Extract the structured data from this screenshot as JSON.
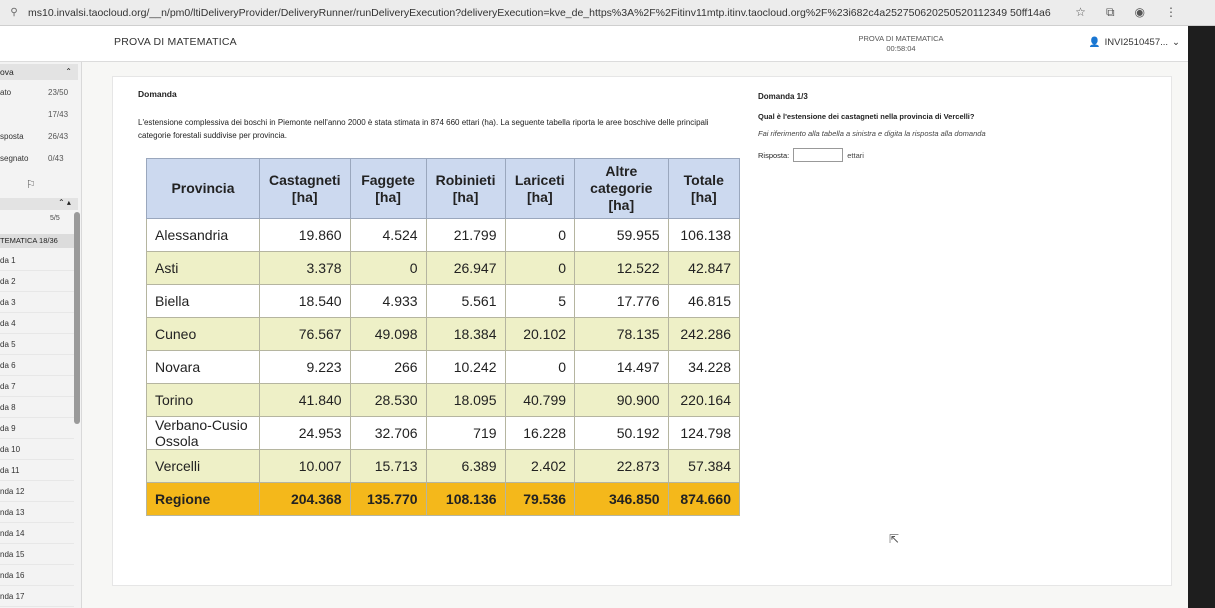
{
  "browser": {
    "url": "ms10.invalsi.taocloud.org/__n/pm0/ltiDeliveryProvider/DeliveryRunner/runDeliveryExecution?deliveryExecution=kve_de_https%3A%2F%2Fitinv11mtp.itinv.taocloud.org%2F%23i682c4a252750620250520112349 50ff14a6",
    "icons": [
      "star-icon",
      "extension-icon",
      "profile-icon",
      "menu-icon"
    ]
  },
  "header": {
    "test_title": "PROVA DI MATEMATICA",
    "timer_label": "PROVA DI MATEMATICA",
    "timer_value": "00:58:04",
    "user": "INVI2510457..."
  },
  "nav": {
    "head_label": "ova",
    "rows": [
      {
        "label": "ato",
        "count": "23/50"
      },
      {
        "label": "",
        "count": "17/43"
      },
      {
        "label": "sposta",
        "count": "26/43"
      },
      {
        "label": "segnato",
        "count": "0/43"
      }
    ],
    "progress": "5/5",
    "section": "TEMATICA 18/36",
    "items": [
      "da 1",
      "da 2",
      "da 3",
      "da 4",
      "da 5",
      "da 6",
      "da 7",
      "da 8",
      "da 9",
      "da 10",
      "da 11",
      "nda 12",
      "nda 13",
      "nda 14",
      "nda 15",
      "nda 16",
      "nda 17"
    ]
  },
  "question": {
    "left_title": "Domanda",
    "text": "L'estensione complessiva dei boschi in Piemonte nell'anno 2000 è stata stimata in  874 660 ettari (ha). La seguente tabella riporta le aree boschive delle principali categorie forestali suddivise per provincia.",
    "right_head": "Domanda 1/3",
    "right_question": "Qual è l'estensione dei castagneti nella provincia di Vercelli?",
    "hint": "Fai riferimento alla tabella a sinistra e digita la risposta alla domanda",
    "answer_label": "Risposta:",
    "answer_unit": "ettari"
  },
  "table": {
    "headers": [
      "Provincia",
      "Castagneti [ha]",
      "Faggete [ha]",
      "Robinieti [ha]",
      "Lariceti [ha]",
      "Altre categorie [ha]",
      "Totale [ha]"
    ],
    "rows": [
      [
        "Alessandria",
        "19.860",
        "4.524",
        "21.799",
        "0",
        "59.955",
        "106.138"
      ],
      [
        "Asti",
        "3.378",
        "0",
        "26.947",
        "0",
        "12.522",
        "42.847"
      ],
      [
        "Biella",
        "18.540",
        "4.933",
        "5.561",
        "5",
        "17.776",
        "46.815"
      ],
      [
        "Cuneo",
        "76.567",
        "49.098",
        "18.384",
        "20.102",
        "78.135",
        "242.286"
      ],
      [
        "Novara",
        "9.223",
        "266",
        "10.242",
        "0",
        "14.497",
        "34.228"
      ],
      [
        "Torino",
        "41.840",
        "28.530",
        "18.095",
        "40.799",
        "90.900",
        "220.164"
      ],
      [
        "Verbano-Cusio Ossola",
        "24.953",
        "32.706",
        "719",
        "16.228",
        "50.192",
        "124.798"
      ],
      [
        "Vercelli",
        "10.007",
        "15.713",
        "6.389",
        "2.402",
        "22.873",
        "57.384"
      ]
    ],
    "total": [
      "Regione",
      "204.368",
      "135.770",
      "108.136",
      "79.536",
      "346.850",
      "874.660"
    ]
  }
}
